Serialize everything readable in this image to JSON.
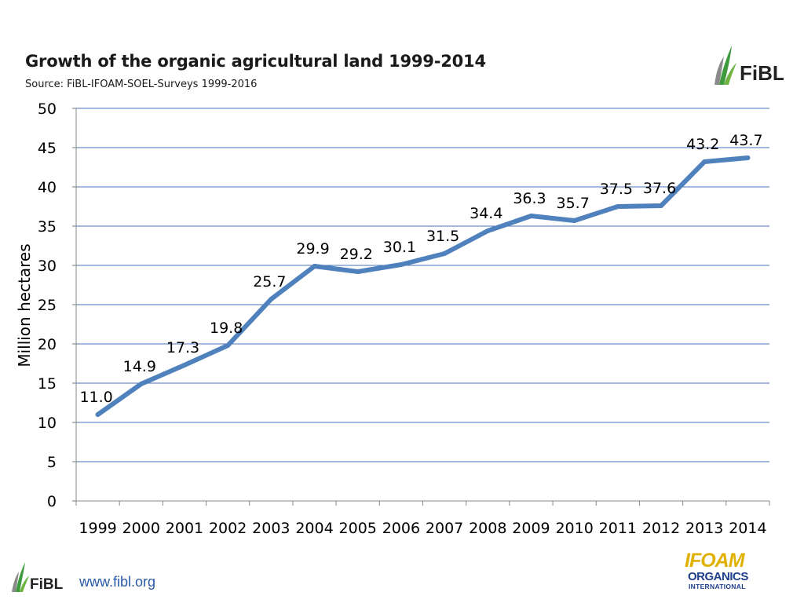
{
  "header": {
    "title": "Growth of the organic agricultural land 1999-2014",
    "source": "Source: FiBL-IFOAM-SOEL-Surveys 1999-2016"
  },
  "footer": {
    "url": "www.fibl.org",
    "fibl_logo_text": "FiBL",
    "ifoam_logo": {
      "line1": "IFOAM",
      "line2": "ORGANICS",
      "line3": "INTERNATIONAL"
    }
  },
  "colors": {
    "line": "#4f81bd",
    "grid": "#4a72b8",
    "axis_text": "#000000"
  },
  "chart_data": {
    "type": "line",
    "title": "Growth of the organic agricultural land 1999-2014",
    "subtitle": "Source: FiBL-IFOAM-SOEL-Surveys 1999-2016",
    "xlabel": "",
    "ylabel": "Million hectares",
    "ylim": [
      0,
      50
    ],
    "yticks": [
      0,
      5,
      10,
      15,
      20,
      25,
      30,
      35,
      40,
      45,
      50
    ],
    "grid": true,
    "categories": [
      "1999",
      "2000",
      "2001",
      "2002",
      "2003",
      "2004",
      "2005",
      "2006",
      "2007",
      "2008",
      "2009",
      "2010",
      "2011",
      "2012",
      "2013",
      "2014"
    ],
    "series": [
      {
        "name": "Organic agricultural land",
        "values": [
          11.0,
          14.9,
          17.3,
          19.8,
          25.7,
          29.9,
          29.2,
          30.1,
          31.5,
          34.4,
          36.3,
          35.7,
          37.5,
          37.6,
          43.2,
          43.7
        ],
        "labels": [
          "11.0",
          "14.9",
          "17.3",
          "19.8",
          "25.7",
          "29.9",
          "29.2",
          "30.1",
          "31.5",
          "34.4",
          "36.3",
          "35.7",
          "37.5",
          "37.6",
          "43.2",
          "43.7"
        ]
      }
    ]
  }
}
